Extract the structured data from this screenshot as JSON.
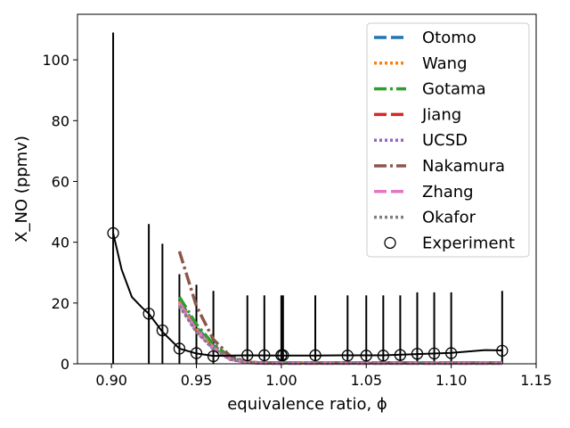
{
  "chart_data": {
    "type": "line",
    "xlabel": "equivalence ratio, ϕ",
    "ylabel": "X_NO (ppmv)",
    "xlim": [
      0.88,
      1.15
    ],
    "ylim": [
      0,
      115
    ],
    "x_ticks": [
      0.9,
      0.95,
      1.0,
      1.05,
      1.1,
      1.15
    ],
    "x_tick_labels": [
      "0.90",
      "0.95",
      "1.00",
      "1.05",
      "1.10",
      "1.15"
    ],
    "y_ticks": [
      0,
      20,
      40,
      60,
      80,
      100
    ],
    "y_tick_labels": [
      "0",
      "20",
      "40",
      "60",
      "80",
      "100"
    ],
    "legend_position": "top-right",
    "series": [
      {
        "name": "Otomo",
        "color": "#1f77b4",
        "style": "dashed",
        "x": [
          0.94,
          0.95,
          0.96,
          0.97,
          0.98,
          0.99,
          1.0,
          1.02,
          1.04,
          1.06,
          1.08,
          1.1,
          1.13
        ],
        "y": [
          21,
          12,
          6,
          2,
          0.5,
          0.3,
          0.3,
          0.3,
          0.3,
          0.3,
          0.3,
          0.3,
          0.3
        ]
      },
      {
        "name": "Wang",
        "color": "#ff7f0e",
        "style": "dotted",
        "x": [
          0.94,
          0.95,
          0.96,
          0.97,
          0.98,
          0.99,
          1.0,
          1.02,
          1.04,
          1.06,
          1.08,
          1.1,
          1.13
        ],
        "y": [
          20.5,
          11.5,
          5.5,
          1.8,
          0.5,
          0.3,
          0.3,
          0.3,
          0.3,
          0.3,
          0.3,
          0.3,
          0.3
        ]
      },
      {
        "name": "Gotama",
        "color": "#2ca02c",
        "style": "dashdot",
        "x": [
          0.94,
          0.95,
          0.96,
          0.97,
          0.98,
          0.99,
          1.0,
          1.02,
          1.04,
          1.06,
          1.08,
          1.1,
          1.13
        ],
        "y": [
          22,
          13,
          6.5,
          2.2,
          0.5,
          0.3,
          0.3,
          0.3,
          0.3,
          0.3,
          0.3,
          0.3,
          0.3
        ]
      },
      {
        "name": "Jiang",
        "color": "#d62728",
        "style": "dashed",
        "x": [
          0.94,
          0.95,
          0.96,
          0.97,
          0.98,
          0.99,
          1.0,
          1.02,
          1.04,
          1.06,
          1.08,
          1.1,
          1.13
        ],
        "y": [
          20,
          11,
          5,
          1.5,
          0.4,
          0.2,
          0.2,
          0.2,
          0.2,
          0.2,
          0.2,
          0.2,
          0.2
        ]
      },
      {
        "name": "UCSD",
        "color": "#9467bd",
        "style": "dotted",
        "x": [
          0.94,
          0.95,
          0.96,
          0.97,
          0.98,
          0.99,
          1.0,
          1.02,
          1.04,
          1.06,
          1.08,
          1.1,
          1.13
        ],
        "y": [
          19.5,
          10.5,
          4.8,
          1.4,
          0.4,
          0.2,
          0.2,
          0.2,
          0.2,
          0.2,
          0.2,
          0.2,
          0.2
        ]
      },
      {
        "name": "Nakamura",
        "color": "#8c564b",
        "style": "dashdot",
        "x": [
          0.94,
          0.95,
          0.96,
          0.97,
          0.98,
          0.99,
          1.0,
          1.02,
          1.04,
          1.06,
          1.08,
          1.1,
          1.13
        ],
        "y": [
          37,
          19,
          8,
          2.5,
          0.5,
          0.3,
          0.3,
          0.3,
          0.3,
          0.3,
          0.3,
          0.3,
          0.3
        ]
      },
      {
        "name": "Zhang",
        "color": "#e377c2",
        "style": "dashed",
        "x": [
          0.94,
          0.95,
          0.96,
          0.97,
          0.98,
          0.99,
          1.0,
          1.02,
          1.04,
          1.06,
          1.08,
          1.1,
          1.13
        ],
        "y": [
          20,
          11,
          5.2,
          1.6,
          0.4,
          0.2,
          0.2,
          0.2,
          0.2,
          0.2,
          0.2,
          0.2,
          0.2
        ]
      },
      {
        "name": "Okafor",
        "color": "#7f7f7f",
        "style": "dotted",
        "x": [
          0.94,
          0.95,
          0.96,
          0.97,
          0.98,
          0.99,
          1.0,
          1.02,
          1.04,
          1.06,
          1.08,
          1.1,
          1.13
        ],
        "y": [
          19,
          10.5,
          5,
          1.5,
          0.4,
          0.2,
          0.2,
          0.2,
          0.2,
          0.2,
          0.2,
          0.2,
          0.2
        ]
      }
    ],
    "experiment": {
      "name": "Experiment",
      "color": "#000000",
      "x": [
        0.901,
        0.922,
        0.93,
        0.94,
        0.95,
        0.96,
        0.98,
        0.99,
        1.0,
        1.001,
        1.02,
        1.039,
        1.05,
        1.06,
        1.07,
        1.08,
        1.09,
        1.1,
        1.13
      ],
      "y": [
        43.0,
        16.5,
        11.0,
        5.0,
        3.5,
        2.5,
        2.8,
        2.8,
        2.8,
        2.8,
        2.8,
        2.7,
        2.7,
        2.7,
        2.9,
        3.3,
        3.4,
        3.5,
        4.3
      ],
      "y_low": [
        0,
        0,
        0,
        0,
        0,
        0,
        0,
        0,
        0,
        0,
        0,
        0,
        0,
        0,
        0,
        0,
        0,
        0,
        0
      ],
      "y_high": [
        109,
        46,
        39.5,
        29.5,
        26,
        24,
        22.5,
        22.5,
        22.5,
        22.5,
        22.5,
        22.5,
        22.5,
        22.5,
        22.5,
        23.5,
        23.5,
        23.5,
        24
      ]
    },
    "experiment_fit": {
      "x": [
        0.901,
        0.906,
        0.912,
        0.918,
        0.922,
        0.93,
        0.94,
        0.95,
        0.96,
        0.98,
        1.0,
        1.02,
        1.04,
        1.06,
        1.08,
        1.1,
        1.12,
        1.13
      ],
      "y": [
        43.0,
        31.0,
        22.0,
        18.5,
        16.5,
        10.5,
        5.0,
        3.4,
        2.6,
        2.8,
        2.7,
        2.7,
        2.8,
        2.8,
        3.2,
        3.6,
        4.5,
        4.4
      ]
    }
  }
}
